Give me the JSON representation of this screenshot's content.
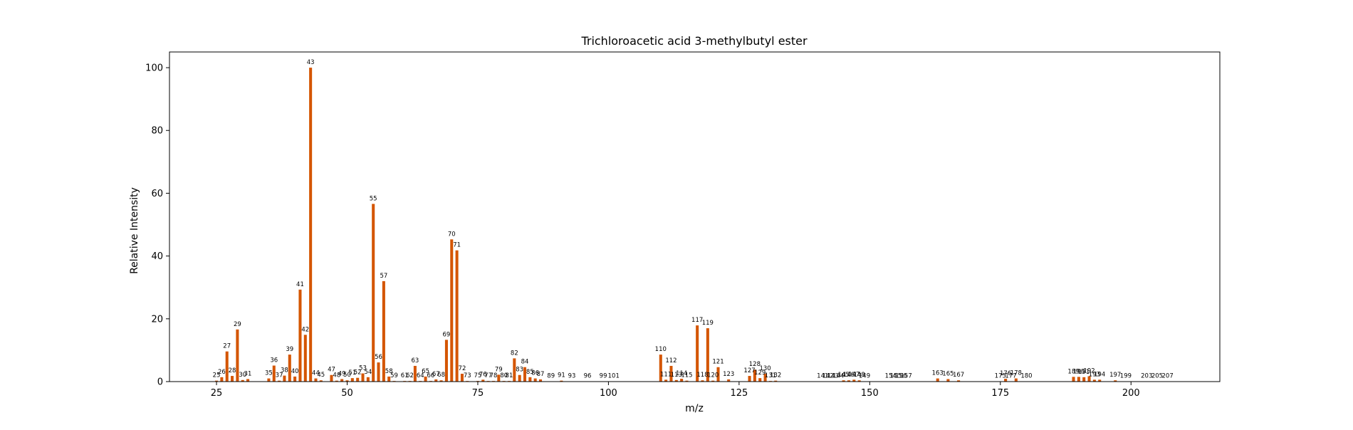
{
  "chart_data": {
    "type": "bar",
    "title": "Trichloroacetic acid 3-methylbutyl ester",
    "xlabel": "m/z",
    "ylabel": "Relative Intensity",
    "xlim": [
      16,
      217
    ],
    "ylim": [
      0,
      105
    ],
    "x_ticks": [
      25,
      50,
      75,
      100,
      125,
      150,
      175,
      200
    ],
    "y_ticks": [
      0,
      20,
      40,
      60,
      80,
      100
    ],
    "grid": false,
    "bar_color": "#d45500",
    "series": [
      {
        "x": [
          25,
          26,
          27,
          28,
          29,
          30,
          31,
          35,
          36,
          37,
          38,
          39,
          40,
          41,
          42,
          43,
          44,
          45,
          47,
          48,
          49,
          50,
          51,
          52,
          53,
          54,
          55,
          56,
          57,
          58,
          59,
          61,
          62,
          63,
          64,
          65,
          66,
          67,
          68,
          69,
          70,
          71,
          72,
          73,
          75,
          76,
          77,
          78,
          79,
          80,
          81,
          82,
          83,
          84,
          85,
          86,
          87,
          89,
          91,
          93,
          96,
          99,
          101,
          110,
          111,
          112,
          113,
          114,
          115,
          117,
          118,
          119,
          120,
          121,
          123,
          127,
          128,
          129,
          130,
          131,
          132,
          141,
          142,
          143,
          144,
          145,
          146,
          147,
          148,
          149,
          154,
          155,
          156,
          157,
          163,
          165,
          167,
          175,
          176,
          177,
          178,
          180,
          189,
          190,
          191,
          192,
          193,
          194,
          197,
          199,
          203,
          205,
          207
        ],
        "values": [
          0.3,
          1.4,
          9.6,
          1.8,
          16.6,
          0.5,
          0.8,
          1.0,
          5.1,
          0.3,
          1.9,
          8.6,
          1.6,
          29.3,
          14.9,
          100.0,
          1.0,
          0.4,
          2.1,
          0.3,
          0.8,
          0.4,
          1.1,
          1.2,
          2.6,
          1.4,
          56.6,
          6.1,
          32.0,
          1.6,
          0.2,
          0.2,
          0.2,
          5.0,
          0.2,
          1.6,
          0.2,
          0.7,
          0.4,
          13.3,
          45.3,
          41.8,
          2.5,
          0.2,
          0.2,
          0.6,
          0.2,
          0.2,
          2.2,
          0.2,
          0.2,
          7.4,
          2.1,
          4.6,
          1.4,
          1.0,
          0.7,
          0.1,
          0.3,
          0.1,
          0.1,
          0.1,
          0.1,
          8.6,
          0.6,
          5.0,
          0.5,
          0.9,
          0.3,
          17.9,
          0.4,
          17.0,
          0.3,
          4.6,
          0.7,
          1.8,
          3.8,
          1.1,
          2.5,
          0.2,
          0.3,
          0.1,
          0.1,
          0.1,
          0.1,
          0.4,
          0.4,
          0.6,
          0.4,
          0.1,
          0.1,
          0.1,
          0.1,
          0.1,
          1.0,
          0.8,
          0.4,
          0.1,
          0.9,
          0.1,
          1.0,
          0.1,
          1.5,
          1.5,
          1.4,
          1.7,
          0.6,
          0.6,
          0.4,
          0.1,
          0.1,
          0.1,
          0.1
        ]
      }
    ],
    "peak_labels": [
      "25",
      "26",
      "27",
      "28",
      "29",
      "30",
      "31",
      "35",
      "36",
      "37",
      "38",
      "39",
      "40",
      "41",
      "42",
      "43",
      "44",
      "45",
      "47",
      "48",
      "49",
      "50",
      "51",
      "52",
      "53",
      "54",
      "55",
      "56",
      "57",
      "58",
      "59",
      "61",
      "62",
      "63",
      "64",
      "65",
      "66",
      "67",
      "68",
      "69",
      "70",
      "71",
      "72",
      "73",
      "75",
      "76",
      "77",
      "78",
      "79",
      "80",
      "81",
      "82",
      "83",
      "84",
      "85",
      "86",
      "87",
      "89",
      "91",
      "93",
      "96",
      "99",
      "101",
      "110",
      "111",
      "112",
      "113",
      "114",
      "115",
      "117",
      "118",
      "119",
      "120",
      "121",
      "123",
      "127",
      "128",
      "129",
      "130",
      "131",
      "132",
      "141",
      "142",
      "143",
      "144",
      "145",
      "146",
      "147",
      "148",
      "149",
      "154",
      "155",
      "156",
      "157",
      "163",
      "165",
      "167",
      "175",
      "176",
      "177",
      "178",
      "180",
      "189",
      "190",
      "191",
      "192",
      "193",
      "194",
      "197",
      "199",
      "203",
      "205",
      "207"
    ]
  }
}
